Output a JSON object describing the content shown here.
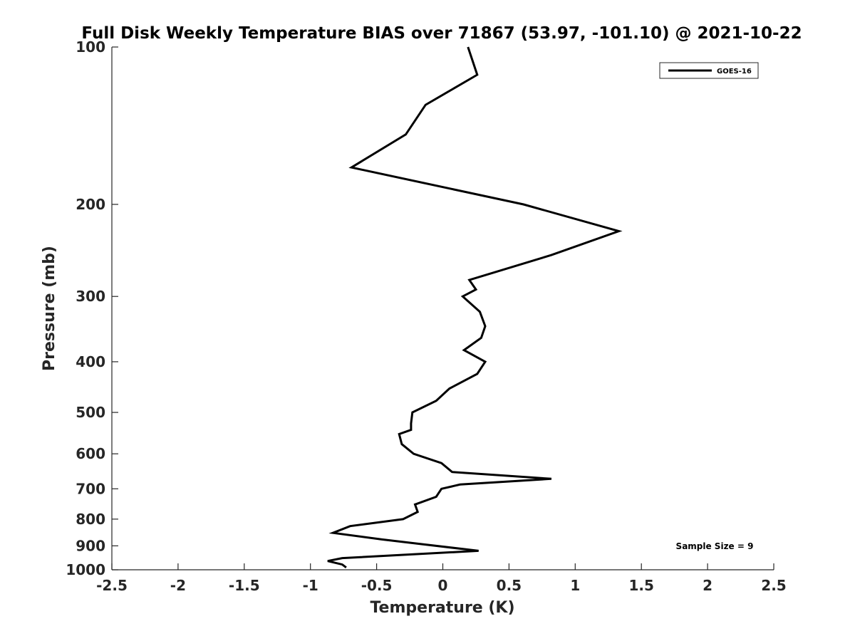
{
  "chart_data": {
    "type": "line",
    "title": "Full Disk Weekly Temperature BIAS over 71867 (53.97, -101.10) @ 2021-10-22",
    "xlabel": "Temperature (K)",
    "ylabel": "Pressure (mb)",
    "xlim": [
      -2.5,
      2.5
    ],
    "ylim": [
      100,
      1000
    ],
    "y_scale": "log",
    "y_reversed": true,
    "x_ticks": [
      -2.5,
      -2,
      -1.5,
      -1,
      -0.5,
      0,
      0.5,
      1,
      1.5,
      2,
      2.5
    ],
    "x_tick_labels": [
      "-2.5",
      "-2",
      "-1.5",
      "-1",
      "-0.5",
      "0",
      "0.5",
      "1",
      "1.5",
      "2",
      "2.5"
    ],
    "y_ticks": [
      100,
      200,
      300,
      400,
      500,
      600,
      700,
      800,
      900,
      1000
    ],
    "y_tick_labels": [
      "100",
      "200",
      "300",
      "400",
      "500",
      "600",
      "700",
      "800",
      "900",
      "1000"
    ],
    "grid": false,
    "legend_position": "top-right",
    "series": [
      {
        "name": "GOES-16",
        "color": "#000000",
        "x": [
          0.19,
          0.26,
          -0.13,
          -0.28,
          -0.69,
          0.61,
          1.33,
          0.82,
          0.2,
          0.25,
          0.15,
          0.28,
          0.32,
          0.29,
          0.16,
          0.32,
          0.26,
          0.05,
          -0.05,
          -0.23,
          -0.24,
          -0.24,
          -0.33,
          -0.31,
          -0.22,
          -0.01,
          0.07,
          0.82,
          0.13,
          -0.01,
          -0.05,
          -0.21,
          -0.19,
          -0.3,
          -0.7,
          -0.83,
          -0.46,
          0.27,
          -0.76,
          -0.87,
          -0.76,
          -0.73
        ],
        "y": [
          100,
          113,
          129,
          147,
          170,
          200,
          225,
          250,
          279,
          291,
          300,
          321,
          342,
          360,
          380,
          400,
          422,
          450,
          475,
          500,
          525,
          540,
          550,
          575,
          600,
          625,
          650,
          670,
          687,
          700,
          725,
          750,
          775,
          800,
          825,
          850,
          875,
          920,
          950,
          962,
          977,
          990
        ]
      }
    ],
    "annotations": [
      {
        "text": "Sample Size = 9",
        "position": "bottom-right"
      }
    ]
  }
}
